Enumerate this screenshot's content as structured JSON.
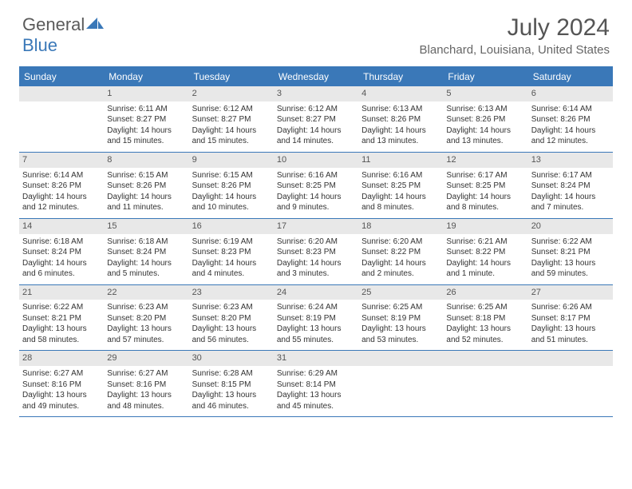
{
  "logo": {
    "text1": "General",
    "text2": "Blue"
  },
  "title": "July 2024",
  "location": "Blanchard, Louisiana, United States",
  "header_bg": "#3a78b8",
  "day_names": [
    "Sunday",
    "Monday",
    "Tuesday",
    "Wednesday",
    "Thursday",
    "Friday",
    "Saturday"
  ],
  "weeks": [
    [
      {
        "num": "",
        "sunrise": "",
        "sunset": "",
        "daylight": ""
      },
      {
        "num": "1",
        "sunrise": "Sunrise: 6:11 AM",
        "sunset": "Sunset: 8:27 PM",
        "daylight": "Daylight: 14 hours and 15 minutes."
      },
      {
        "num": "2",
        "sunrise": "Sunrise: 6:12 AM",
        "sunset": "Sunset: 8:27 PM",
        "daylight": "Daylight: 14 hours and 15 minutes."
      },
      {
        "num": "3",
        "sunrise": "Sunrise: 6:12 AM",
        "sunset": "Sunset: 8:27 PM",
        "daylight": "Daylight: 14 hours and 14 minutes."
      },
      {
        "num": "4",
        "sunrise": "Sunrise: 6:13 AM",
        "sunset": "Sunset: 8:26 PM",
        "daylight": "Daylight: 14 hours and 13 minutes."
      },
      {
        "num": "5",
        "sunrise": "Sunrise: 6:13 AM",
        "sunset": "Sunset: 8:26 PM",
        "daylight": "Daylight: 14 hours and 13 minutes."
      },
      {
        "num": "6",
        "sunrise": "Sunrise: 6:14 AM",
        "sunset": "Sunset: 8:26 PM",
        "daylight": "Daylight: 14 hours and 12 minutes."
      }
    ],
    [
      {
        "num": "7",
        "sunrise": "Sunrise: 6:14 AM",
        "sunset": "Sunset: 8:26 PM",
        "daylight": "Daylight: 14 hours and 12 minutes."
      },
      {
        "num": "8",
        "sunrise": "Sunrise: 6:15 AM",
        "sunset": "Sunset: 8:26 PM",
        "daylight": "Daylight: 14 hours and 11 minutes."
      },
      {
        "num": "9",
        "sunrise": "Sunrise: 6:15 AM",
        "sunset": "Sunset: 8:26 PM",
        "daylight": "Daylight: 14 hours and 10 minutes."
      },
      {
        "num": "10",
        "sunrise": "Sunrise: 6:16 AM",
        "sunset": "Sunset: 8:25 PM",
        "daylight": "Daylight: 14 hours and 9 minutes."
      },
      {
        "num": "11",
        "sunrise": "Sunrise: 6:16 AM",
        "sunset": "Sunset: 8:25 PM",
        "daylight": "Daylight: 14 hours and 8 minutes."
      },
      {
        "num": "12",
        "sunrise": "Sunrise: 6:17 AM",
        "sunset": "Sunset: 8:25 PM",
        "daylight": "Daylight: 14 hours and 8 minutes."
      },
      {
        "num": "13",
        "sunrise": "Sunrise: 6:17 AM",
        "sunset": "Sunset: 8:24 PM",
        "daylight": "Daylight: 14 hours and 7 minutes."
      }
    ],
    [
      {
        "num": "14",
        "sunrise": "Sunrise: 6:18 AM",
        "sunset": "Sunset: 8:24 PM",
        "daylight": "Daylight: 14 hours and 6 minutes."
      },
      {
        "num": "15",
        "sunrise": "Sunrise: 6:18 AM",
        "sunset": "Sunset: 8:24 PM",
        "daylight": "Daylight: 14 hours and 5 minutes."
      },
      {
        "num": "16",
        "sunrise": "Sunrise: 6:19 AM",
        "sunset": "Sunset: 8:23 PM",
        "daylight": "Daylight: 14 hours and 4 minutes."
      },
      {
        "num": "17",
        "sunrise": "Sunrise: 6:20 AM",
        "sunset": "Sunset: 8:23 PM",
        "daylight": "Daylight: 14 hours and 3 minutes."
      },
      {
        "num": "18",
        "sunrise": "Sunrise: 6:20 AM",
        "sunset": "Sunset: 8:22 PM",
        "daylight": "Daylight: 14 hours and 2 minutes."
      },
      {
        "num": "19",
        "sunrise": "Sunrise: 6:21 AM",
        "sunset": "Sunset: 8:22 PM",
        "daylight": "Daylight: 14 hours and 1 minute."
      },
      {
        "num": "20",
        "sunrise": "Sunrise: 6:22 AM",
        "sunset": "Sunset: 8:21 PM",
        "daylight": "Daylight: 13 hours and 59 minutes."
      }
    ],
    [
      {
        "num": "21",
        "sunrise": "Sunrise: 6:22 AM",
        "sunset": "Sunset: 8:21 PM",
        "daylight": "Daylight: 13 hours and 58 minutes."
      },
      {
        "num": "22",
        "sunrise": "Sunrise: 6:23 AM",
        "sunset": "Sunset: 8:20 PM",
        "daylight": "Daylight: 13 hours and 57 minutes."
      },
      {
        "num": "23",
        "sunrise": "Sunrise: 6:23 AM",
        "sunset": "Sunset: 8:20 PM",
        "daylight": "Daylight: 13 hours and 56 minutes."
      },
      {
        "num": "24",
        "sunrise": "Sunrise: 6:24 AM",
        "sunset": "Sunset: 8:19 PM",
        "daylight": "Daylight: 13 hours and 55 minutes."
      },
      {
        "num": "25",
        "sunrise": "Sunrise: 6:25 AM",
        "sunset": "Sunset: 8:19 PM",
        "daylight": "Daylight: 13 hours and 53 minutes."
      },
      {
        "num": "26",
        "sunrise": "Sunrise: 6:25 AM",
        "sunset": "Sunset: 8:18 PM",
        "daylight": "Daylight: 13 hours and 52 minutes."
      },
      {
        "num": "27",
        "sunrise": "Sunrise: 6:26 AM",
        "sunset": "Sunset: 8:17 PM",
        "daylight": "Daylight: 13 hours and 51 minutes."
      }
    ],
    [
      {
        "num": "28",
        "sunrise": "Sunrise: 6:27 AM",
        "sunset": "Sunset: 8:16 PM",
        "daylight": "Daylight: 13 hours and 49 minutes."
      },
      {
        "num": "29",
        "sunrise": "Sunrise: 6:27 AM",
        "sunset": "Sunset: 8:16 PM",
        "daylight": "Daylight: 13 hours and 48 minutes."
      },
      {
        "num": "30",
        "sunrise": "Sunrise: 6:28 AM",
        "sunset": "Sunset: 8:15 PM",
        "daylight": "Daylight: 13 hours and 46 minutes."
      },
      {
        "num": "31",
        "sunrise": "Sunrise: 6:29 AM",
        "sunset": "Sunset: 8:14 PM",
        "daylight": "Daylight: 13 hours and 45 minutes."
      },
      {
        "num": "",
        "sunrise": "",
        "sunset": "",
        "daylight": ""
      },
      {
        "num": "",
        "sunrise": "",
        "sunset": "",
        "daylight": ""
      },
      {
        "num": "",
        "sunrise": "",
        "sunset": "",
        "daylight": ""
      }
    ]
  ]
}
